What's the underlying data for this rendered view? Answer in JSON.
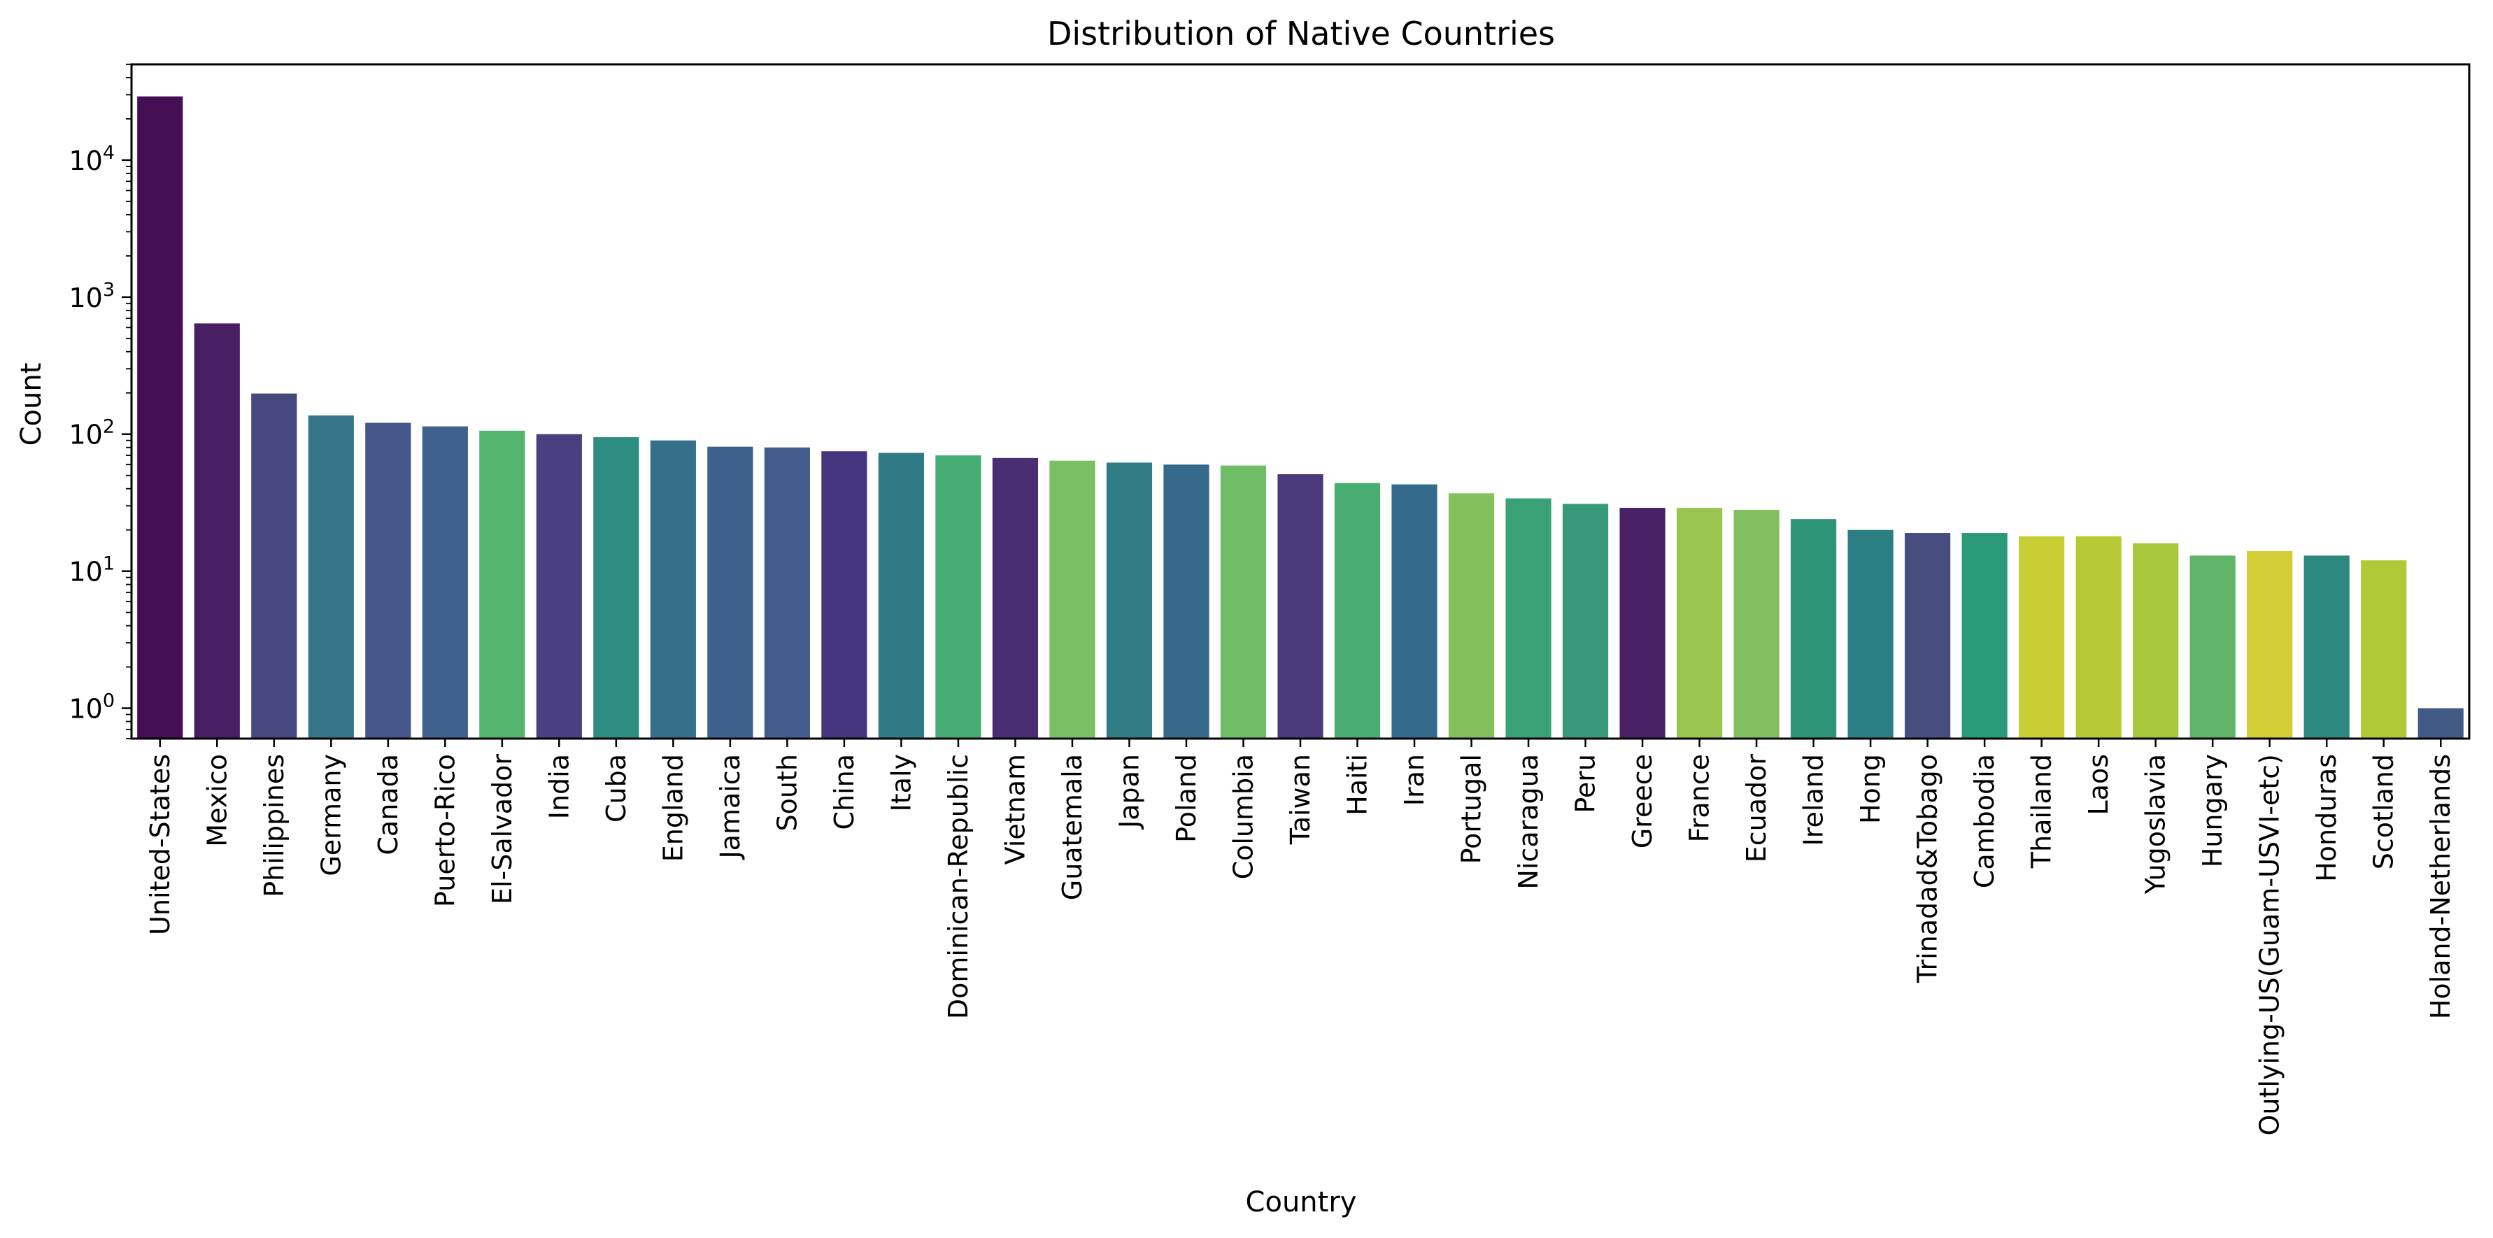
{
  "chart_data": {
    "type": "bar",
    "title": "Distribution of Native Countries",
    "xlabel": "Country",
    "ylabel": "Count",
    "y_scale": "log",
    "ylim": [
      0.6,
      50000
    ],
    "y_ticks": [
      {
        "value": 1,
        "base": "10",
        "exp": "0"
      },
      {
        "value": 10,
        "base": "10",
        "exp": "1"
      },
      {
        "value": 100,
        "base": "10",
        "exp": "2"
      },
      {
        "value": 1000,
        "base": "10",
        "exp": "3"
      },
      {
        "value": 10000,
        "base": "10",
        "exp": "4"
      }
    ],
    "grid": false,
    "categories": [
      "United-States",
      "Mexico",
      "Philippines",
      "Germany",
      "Canada",
      "Puerto-Rico",
      "El-Salvador",
      "India",
      "Cuba",
      "England",
      "Jamaica",
      "South",
      "China",
      "Italy",
      "Dominican-Republic",
      "Vietnam",
      "Guatemala",
      "Japan",
      "Poland",
      "Columbia",
      "Taiwan",
      "Haiti",
      "Iran",
      "Portugal",
      "Nicaragua",
      "Peru",
      "Greece",
      "France",
      "Ecuador",
      "Ireland",
      "Hong",
      "Trinadad&Tobago",
      "Cambodia",
      "Thailand",
      "Laos",
      "Yugoslavia",
      "Hungary",
      "Outlying-US(Guam-USVI-etc)",
      "Honduras",
      "Scotland",
      "Holand-Netherlands"
    ],
    "values": [
      29170,
      643,
      198,
      137,
      121,
      114,
      106,
      100,
      95,
      90,
      81,
      80,
      75,
      73,
      70,
      67,
      64,
      62,
      60,
      59,
      51,
      44,
      43,
      37,
      34,
      31,
      29,
      29,
      28,
      24,
      20,
      19,
      19,
      18,
      18,
      16,
      13,
      14,
      13,
      12,
      1
    ],
    "colors": [
      "#440f54",
      "#481f63",
      "#47497e",
      "#37758a",
      "#45568a",
      "#3e628b",
      "#55b46e",
      "#4a3f80",
      "#2c8c80",
      "#35708a",
      "#3e618b",
      "#425c8c",
      "#45347e",
      "#2f7a85",
      "#45ac74",
      "#482e72",
      "#78c062",
      "#2f7c85",
      "#376a8a",
      "#6fbd67",
      "#4a3a7b",
      "#4aad72",
      "#33698b",
      "#84c05c",
      "#3aa176",
      "#38997a",
      "#482264",
      "#98c44f",
      "#81c05c",
      "#2d9478",
      "#2b7f82",
      "#474e7f",
      "#2b9a78",
      "#c7cf34",
      "#b7c933",
      "#a7c83d",
      "#61b568",
      "#d3cd36",
      "#2d8880",
      "#b0c936",
      "#425b86"
    ]
  }
}
